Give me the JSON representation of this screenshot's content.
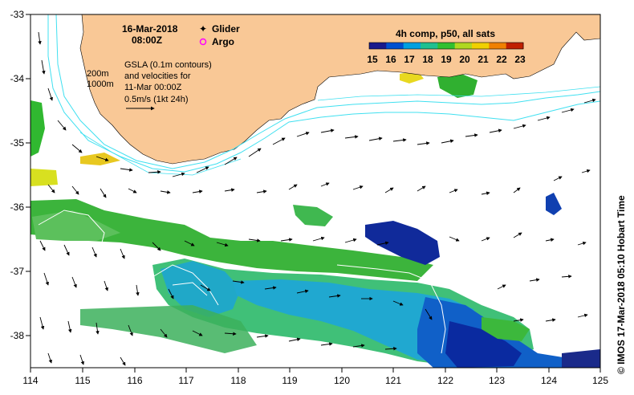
{
  "map": {
    "date": "16-Mar-2018",
    "time": "08:00Z",
    "legend": {
      "glider": "Glider",
      "argo": "Argo",
      "glider_color": "#ff00ff",
      "argo_color": "#ff00ff"
    },
    "contour_labels": {
      "c200": "200m",
      "c1000": "1000m"
    },
    "gsla_text": [
      "GSLA (0.1m contours)",
      "and velocities for",
      "11-Mar 00:00Z"
    ],
    "scale_text": "0.5m/s (1kt 24h)",
    "colorbar": {
      "title": "4h comp, p50, all sats",
      "ticks": [
        "15",
        "16",
        "17",
        "18",
        "19",
        "20",
        "21",
        "22",
        "23"
      ],
      "colors": [
        "#1a1a8c",
        "#0050d0",
        "#00a0e0",
        "#20c090",
        "#30c030",
        "#b0d820",
        "#f0d000",
        "#f08000",
        "#c02000"
      ]
    },
    "x_ticks": [
      "114",
      "115",
      "116",
      "117",
      "118",
      "119",
      "120",
      "121",
      "122",
      "123",
      "124",
      "125"
    ],
    "y_ticks": [
      "-33",
      "-34",
      "-35",
      "-36",
      "-37",
      "-38"
    ],
    "credit": "© IMOS 17-Mar-2018 05:10 Hobart Time",
    "colors": {
      "land": "#f9c896",
      "isobath": "#40e0f0",
      "frame": "#000000"
    }
  }
}
